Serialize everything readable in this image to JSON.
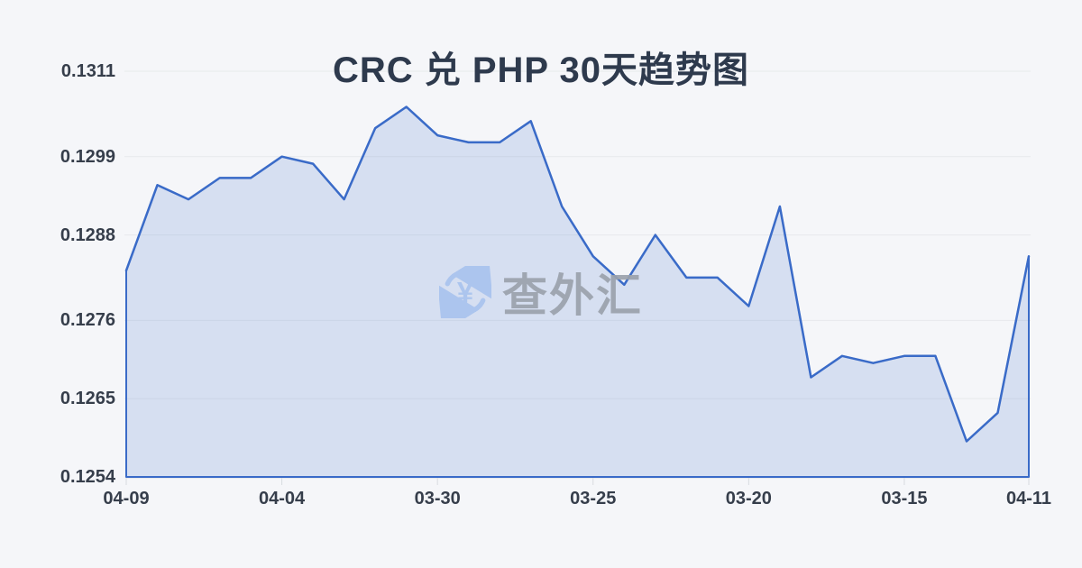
{
  "title": "CRC 兑 PHP 30天趋势图",
  "watermark": {
    "icon": "currency-exchange-icon",
    "symbol": "¥",
    "text": "查外汇"
  },
  "colors": {
    "background": "#F5F6F9",
    "title_text": "#2E3A4D",
    "axis_text": "#363E4B",
    "grid_line": "#E7E9EC",
    "axis_line": "#D8DBE0",
    "series_line": "#3A6BC8",
    "series_fill": "#3A6BC8",
    "series_fill_opacity": 0.16,
    "watermark_icon": "#A9C3EE",
    "watermark_text": "#9BA2AC"
  },
  "chart_data": {
    "type": "area",
    "title": "CRC 兑 PHP 30天趋势图",
    "xlabel": "",
    "ylabel": "",
    "grid": true,
    "legend": null,
    "ylim": [
      0.1254,
      0.1311
    ],
    "y_tick_labels": [
      "0.1311",
      "0.1299",
      "0.1288",
      "0.1276",
      "0.1265",
      "0.1254"
    ],
    "y_tick_values": [
      0.1311,
      0.1299,
      0.1288,
      0.1276,
      0.1265,
      0.1254
    ],
    "x_tick_labels": [
      "04-09",
      "04-04",
      "03-30",
      "03-25",
      "03-20",
      "03-15",
      "04-11"
    ],
    "x_tick_indices": [
      0,
      5,
      10,
      15,
      20,
      25,
      29
    ],
    "values": [
      0.1283,
      0.1295,
      0.1293,
      0.1296,
      0.1296,
      0.1299,
      0.1298,
      0.1293,
      0.1303,
      0.1306,
      0.1302,
      0.1301,
      0.1301,
      0.1304,
      0.1292,
      0.1285,
      0.1281,
      0.1288,
      0.1282,
      0.1282,
      0.1278,
      0.1292,
      0.1268,
      0.1271,
      0.127,
      0.1271,
      0.1271,
      0.1259,
      0.1263,
      0.1285
    ]
  }
}
